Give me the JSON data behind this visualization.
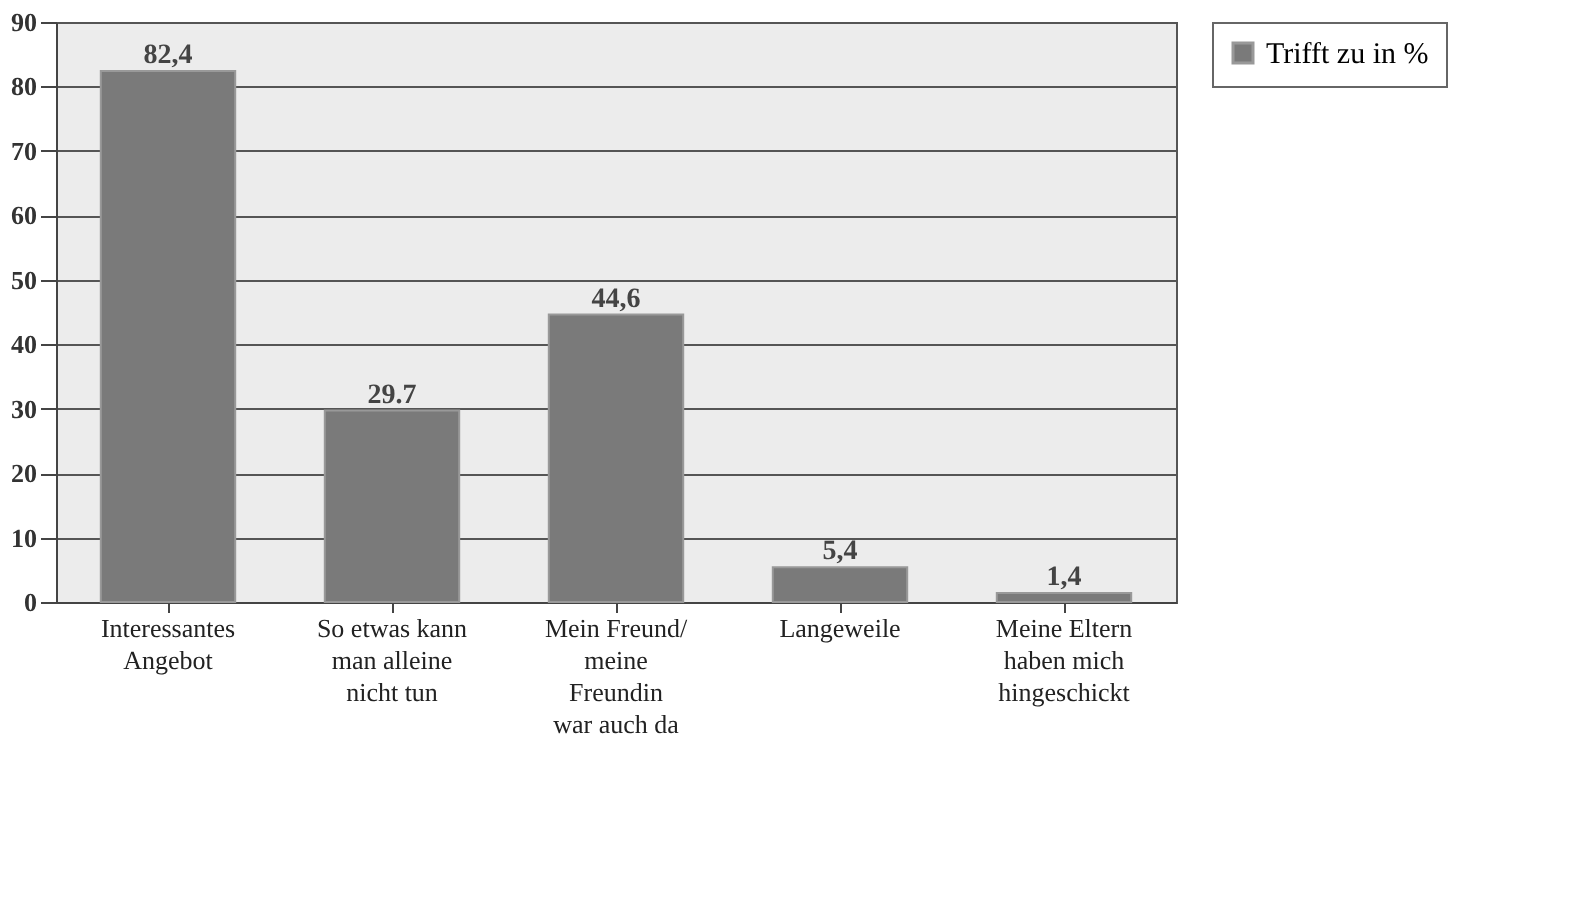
{
  "chart_data": {
    "type": "bar",
    "categories": [
      "Interessantes\nAngebot",
      "So etwas kann\nman alleine\nnicht tun",
      "Mein Freund/\nmeine\nFreundin\nwar auch da",
      "Langeweile",
      "Meine Eltern\nhaben mich\nhingeschickt"
    ],
    "series": [
      {
        "name": "Trifft zu in %",
        "color": "#7a7a7a",
        "values": [
          82.4,
          29.7,
          44.6,
          5.4,
          1.4
        ],
        "value_labels": [
          "82,4",
          "29.7",
          "44,6",
          "5,4",
          "1,4"
        ]
      }
    ],
    "ylim": [
      0,
      90
    ],
    "yticks": [
      0,
      10,
      20,
      30,
      40,
      50,
      60,
      70,
      80,
      90
    ],
    "grid": "y",
    "legend": "right"
  }
}
